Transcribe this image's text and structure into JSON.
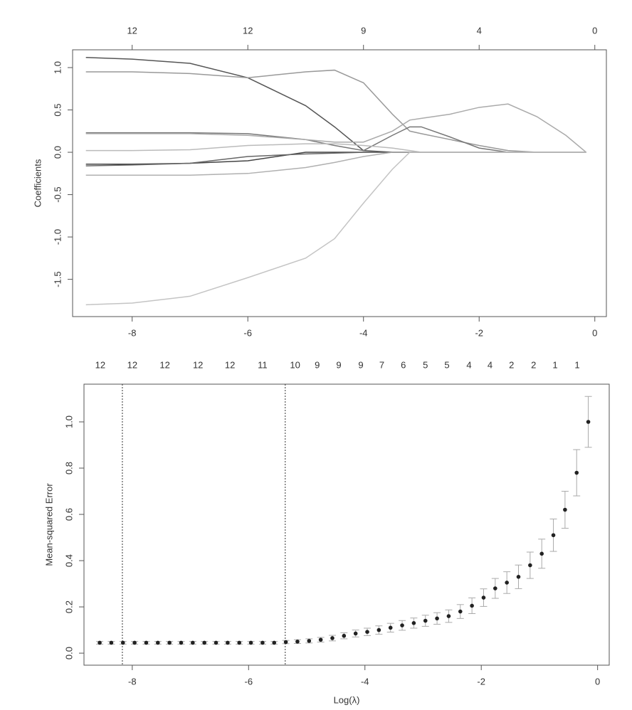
{
  "chart_data": [
    {
      "type": "line",
      "ylabel": "Coefficients",
      "x": [
        -8.8,
        -8,
        -7,
        -6,
        -5,
        -4.5,
        -4,
        -3.5,
        -3.2,
        -3,
        -2.5,
        -2,
        -1.5,
        -1,
        -0.5,
        -0.15
      ],
      "series": [
        {
          "color": "#555555",
          "values": [
            1.12,
            1.1,
            1.05,
            0.88,
            0.55,
            0.3,
            0.02,
            0,
            0,
            0,
            0,
            0,
            0,
            0,
            0,
            0
          ]
        },
        {
          "color": "#999999",
          "values": [
            0.95,
            0.95,
            0.93,
            0.88,
            0.95,
            0.97,
            0.82,
            0.45,
            0.25,
            0.22,
            0.15,
            0.08,
            0.02,
            0,
            0,
            0
          ]
        },
        {
          "color": "#777777",
          "values": [
            0.23,
            0.23,
            0.23,
            0.22,
            0.15,
            0.08,
            0.02,
            0.2,
            0.3,
            0.3,
            0.18,
            0.05,
            0,
            0,
            0,
            0
          ]
        },
        {
          "color": "#aaaaaa",
          "values": [
            0.22,
            0.22,
            0.22,
            0.2,
            0.15,
            0.12,
            0.12,
            0.25,
            0.38,
            0.4,
            0.45,
            0.53,
            0.57,
            0.42,
            0.2,
            0
          ]
        },
        {
          "color": "#bbbbbb",
          "values": [
            0.02,
            0.02,
            0.03,
            0.08,
            0.1,
            0.1,
            0.08,
            0.05,
            0.02,
            0,
            0,
            0,
            0,
            0,
            0,
            0
          ]
        },
        {
          "color": "#444444",
          "values": [
            -0.14,
            -0.14,
            -0.13,
            -0.1,
            0,
            0,
            0,
            0,
            0,
            0,
            0,
            0,
            0,
            0,
            0,
            0
          ]
        },
        {
          "color": "#666666",
          "values": [
            -0.16,
            -0.15,
            -0.13,
            -0.05,
            -0.02,
            -0.01,
            0,
            0,
            0,
            0,
            0,
            0,
            0,
            0,
            0,
            0
          ]
        },
        {
          "color": "#b0b0b0",
          "values": [
            -0.27,
            -0.27,
            -0.27,
            -0.25,
            -0.18,
            -0.12,
            -0.05,
            0,
            0,
            0,
            0,
            0,
            0,
            0,
            0,
            0
          ]
        },
        {
          "color": "#c4c4c4",
          "values": [
            -1.8,
            -1.78,
            -1.7,
            -1.48,
            -1.25,
            -1.02,
            -0.6,
            -0.2,
            0,
            0,
            0,
            0,
            0,
            0,
            0,
            0
          ]
        }
      ],
      "xlim": [
        -9.03,
        0.2
      ],
      "ylim": [
        -1.94,
        1.21
      ],
      "xticks": [
        -8,
        -6,
        -4,
        -2,
        0
      ],
      "yticks": [
        -1.5,
        {
          "value": -1,
          "label": "-1.0"
        },
        -0.5,
        {
          "value": 0,
          "label": "0.0"
        },
        0.5,
        {
          "value": 1,
          "label": "1.0"
        }
      ],
      "top_ticks": [
        {
          "value": -8,
          "label": "12"
        },
        {
          "value": -6,
          "label": "12"
        },
        {
          "value": -4,
          "label": "9"
        },
        {
          "value": -2,
          "label": "4"
        },
        {
          "value": 0,
          "label": "0"
        }
      ]
    },
    {
      "type": "scatter",
      "xlabel": "Log(λ)",
      "ylabel": "Mean-squared Error",
      "color": "#222222",
      "error_color": "#aaaaaa",
      "vline_color": "#333333",
      "x": [
        -8.56,
        -8.36,
        -8.16,
        -7.96,
        -7.76,
        -7.56,
        -7.36,
        -7.16,
        -6.96,
        -6.76,
        -6.56,
        -6.36,
        -6.16,
        -5.96,
        -5.76,
        -5.56,
        -5.36,
        -5.16,
        -4.96,
        -4.76,
        -4.56,
        -4.36,
        -4.16,
        -3.96,
        -3.76,
        -3.56,
        -3.36,
        -3.16,
        -2.96,
        -2.76,
        -2.56,
        -2.36,
        -2.16,
        -1.96,
        -1.76,
        -1.56,
        -1.36,
        -1.16,
        -0.96,
        -0.76,
        -0.56,
        -0.36,
        -0.16
      ],
      "values": [
        0.045,
        0.045,
        0.045,
        0.045,
        0.045,
        0.045,
        0.045,
        0.045,
        0.045,
        0.045,
        0.045,
        0.045,
        0.045,
        0.045,
        0.045,
        0.045,
        0.048,
        0.05,
        0.053,
        0.058,
        0.065,
        0.075,
        0.085,
        0.092,
        0.1,
        0.11,
        0.12,
        0.13,
        0.14,
        0.15,
        0.16,
        0.18,
        0.205,
        0.24,
        0.28,
        0.305,
        0.33,
        0.38,
        0.43,
        0.51,
        0.62,
        0.78,
        1.0
      ],
      "errors": [
        0.006,
        0.006,
        0.006,
        0.006,
        0.006,
        0.006,
        0.006,
        0.006,
        0.006,
        0.006,
        0.006,
        0.006,
        0.006,
        0.006,
        0.006,
        0.006,
        0.007,
        0.008,
        0.009,
        0.01,
        0.012,
        0.013,
        0.015,
        0.016,
        0.018,
        0.019,
        0.021,
        0.022,
        0.024,
        0.025,
        0.027,
        0.03,
        0.034,
        0.038,
        0.043,
        0.047,
        0.051,
        0.057,
        0.063,
        0.07,
        0.08,
        0.1,
        0.11
      ],
      "xlim": [
        -8.83,
        0.2
      ],
      "ylim": [
        -0.052,
        1.163
      ],
      "xticks": [
        -8,
        -6,
        -4,
        -2,
        0
      ],
      "yticks": [
        {
          "value": 0,
          "label": "0.0"
        },
        0.2,
        0.4,
        0.6,
        0.8,
        {
          "value": 1,
          "label": "1.0"
        }
      ],
      "vlines": [
        -8.17,
        -5.37
      ],
      "top_ticks": [
        {
          "value": -8.55,
          "label": "12"
        },
        {
          "value": -8.0,
          "label": "12"
        },
        {
          "value": -7.44,
          "label": "12"
        },
        {
          "value": -6.87,
          "label": "12"
        },
        {
          "value": -6.32,
          "label": "12"
        },
        {
          "value": -5.76,
          "label": "11"
        },
        {
          "value": -5.2,
          "label": "10"
        },
        {
          "value": -4.82,
          "label": "9"
        },
        {
          "value": -4.45,
          "label": "9"
        },
        {
          "value": -4.07,
          "label": "9"
        },
        {
          "value": -3.71,
          "label": "7"
        },
        {
          "value": -3.34,
          "label": "6"
        },
        {
          "value": -2.96,
          "label": "5"
        },
        {
          "value": -2.59,
          "label": "5"
        },
        {
          "value": -2.21,
          "label": "4"
        },
        {
          "value": -1.85,
          "label": "4"
        },
        {
          "value": -1.48,
          "label": "2"
        },
        {
          "value": -1.1,
          "label": "2"
        },
        {
          "value": -0.73,
          "label": "1"
        },
        {
          "value": -0.35,
          "label": "1"
        }
      ]
    }
  ]
}
